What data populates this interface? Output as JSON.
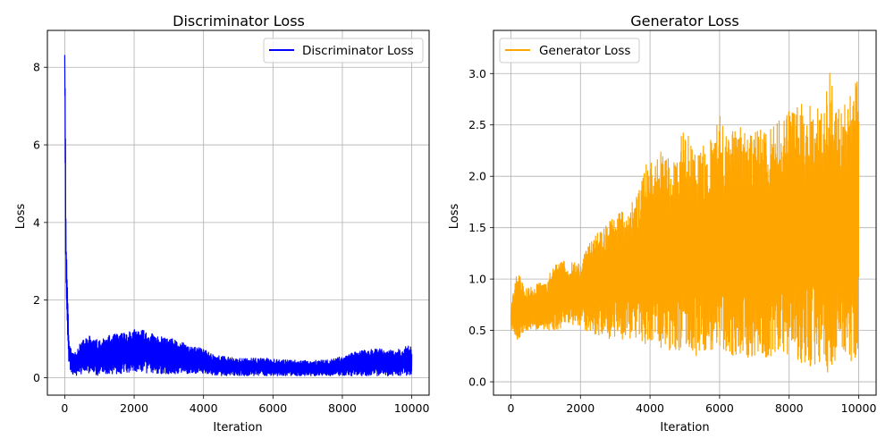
{
  "chart_data": [
    {
      "type": "line",
      "title": "Discriminator Loss",
      "xlabel": "Iteration",
      "ylabel": "Loss",
      "xlim": [
        -500,
        10500
      ],
      "ylim": [
        -0.45,
        8.95
      ],
      "xticks": [
        0,
        2000,
        4000,
        6000,
        8000,
        10000
      ],
      "yticks": [
        0,
        2,
        4,
        6,
        8
      ],
      "grid": true,
      "legend_position": "top-right",
      "series": [
        {
          "name": "Discriminator Loss",
          "color": "#0000ff",
          "x": [
            0,
            10,
            20,
            30,
            50,
            80,
            120,
            200,
            300,
            500,
            700,
            1000,
            1300,
            1600,
            1900,
            2200,
            2500,
            2800,
            3100,
            3400,
            3700,
            4000,
            4300,
            4600,
            5000,
            5500,
            6000,
            6500,
            7000,
            7500,
            8000,
            8500,
            9000,
            9500,
            10000
          ],
          "upper": [
            8.55,
            7.9,
            6.8,
            5.0,
            3.3,
            2.5,
            1.0,
            0.65,
            0.7,
            0.95,
            1.1,
            0.95,
            1.1,
            1.15,
            1.25,
            1.25,
            1.15,
            1.05,
            1.0,
            0.9,
            0.8,
            0.75,
            0.6,
            0.55,
            0.5,
            0.5,
            0.5,
            0.45,
            0.45,
            0.45,
            0.55,
            0.7,
            0.75,
            0.7,
            0.85
          ],
          "lower": [
            7.6,
            6.5,
            4.0,
            2.8,
            1.6,
            1.0,
            0.3,
            0.1,
            0.05,
            0.1,
            0.1,
            0.05,
            0.1,
            0.1,
            0.15,
            0.15,
            0.1,
            0.1,
            0.1,
            0.1,
            0.1,
            0.1,
            0.05,
            0.05,
            0.05,
            0.05,
            0.05,
            0.05,
            0.05,
            0.05,
            0.05,
            0.05,
            0.05,
            0.05,
            0.05
          ]
        }
      ]
    },
    {
      "type": "line",
      "title": "Generator Loss",
      "xlabel": "Iteration",
      "ylabel": "Loss",
      "xlim": [
        -500,
        10500
      ],
      "ylim": [
        -0.13,
        3.42
      ],
      "xticks": [
        0,
        2000,
        4000,
        6000,
        8000,
        10000
      ],
      "yticks": [
        0.0,
        0.5,
        1.0,
        1.5,
        2.0,
        2.5,
        3.0
      ],
      "grid": true,
      "legend_position": "top-left",
      "series": [
        {
          "name": "Generator Loss",
          "color": "#ffa500",
          "x": [
            0,
            100,
            200,
            400,
            700,
            1000,
            1300,
            1600,
            2000,
            2300,
            2600,
            3000,
            3300,
            3600,
            4000,
            4300,
            4600,
            5000,
            5300,
            5600,
            6000,
            6300,
            6600,
            7000,
            7300,
            7600,
            8000,
            8300,
            8600,
            9000,
            9150,
            9300,
            9600,
            10000
          ],
          "upper": [
            0.7,
            0.95,
            1.1,
            0.9,
            0.95,
            1.0,
            1.15,
            1.2,
            1.15,
            1.4,
            1.5,
            1.65,
            1.7,
            1.8,
            2.25,
            2.25,
            2.15,
            2.5,
            2.3,
            2.35,
            2.6,
            2.4,
            2.55,
            2.45,
            2.45,
            2.5,
            2.65,
            2.7,
            2.75,
            2.65,
            3.27,
            2.6,
            2.75,
            2.98
          ],
          "lower": [
            0.5,
            0.45,
            0.4,
            0.5,
            0.5,
            0.5,
            0.5,
            0.55,
            0.55,
            0.45,
            0.45,
            0.4,
            0.4,
            0.4,
            0.35,
            0.3,
            0.3,
            0.3,
            0.25,
            0.25,
            0.25,
            0.25,
            0.2,
            0.25,
            0.2,
            0.2,
            0.2,
            0.15,
            0.15,
            0.2,
            0.05,
            0.15,
            0.2,
            0.12
          ]
        }
      ]
    }
  ]
}
